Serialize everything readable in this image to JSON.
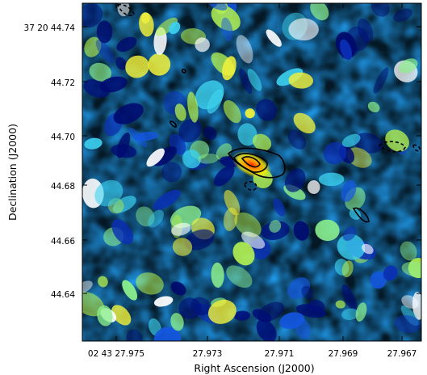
{
  "chart_data": {
    "type": "heatmap",
    "title": "",
    "xlabel": "Right Ascension (J2000)",
    "ylabel": "Declination (J2000)",
    "x_ticks": [
      "02 43 27.975",
      "27.973",
      "27.971",
      "27.969",
      "27.967"
    ],
    "y_ticks": [
      "37 20 44.74",
      "44.72",
      "44.70",
      "44.68",
      "44.66",
      "44.64"
    ],
    "colormap": "jet",
    "contours": {
      "solid_color": "#000000",
      "negative_style": "dashed",
      "peak_location": "centre, slightly left"
    }
  }
}
